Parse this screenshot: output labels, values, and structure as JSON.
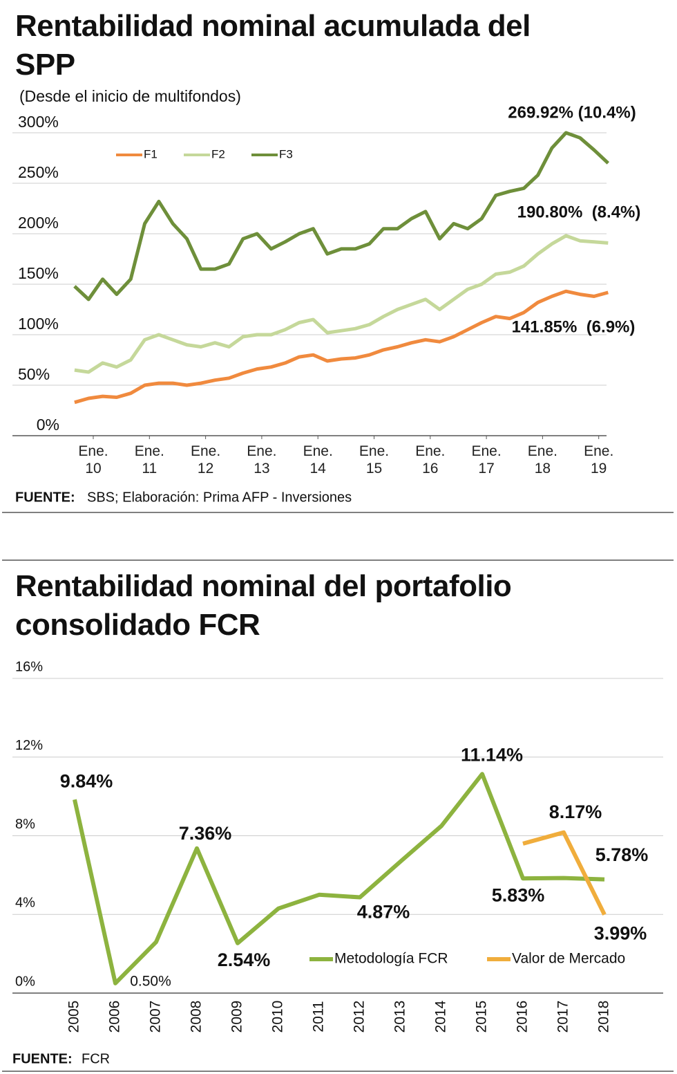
{
  "chart_data": [
    {
      "type": "line",
      "title": "Rentabilidad nominal acumulada del SPP",
      "subtitle": "(Desde el inicio de multifondos)",
      "x": [
        "2009-09",
        "2009-12",
        "2010-03",
        "2010-06",
        "2010-09",
        "2010-12",
        "2011-03",
        "2011-06",
        "2011-09",
        "2011-12",
        "2012-03",
        "2012-06",
        "2012-09",
        "2012-12",
        "2013-03",
        "2013-06",
        "2013-09",
        "2013-12",
        "2014-03",
        "2014-06",
        "2014-09",
        "2014-12",
        "2015-03",
        "2015-06",
        "2015-09",
        "2015-12",
        "2016-03",
        "2016-06",
        "2016-09",
        "2016-12",
        "2017-03",
        "2017-06",
        "2017-09",
        "2017-12",
        "2018-03",
        "2018-06",
        "2018-09",
        "2018-12",
        "2019-03"
      ],
      "series": [
        {
          "name": "F1",
          "color": "#f08a3e",
          "values": [
            33,
            37,
            39,
            38,
            42,
            50,
            52,
            52,
            50,
            52,
            55,
            57,
            62,
            66,
            68,
            72,
            78,
            80,
            74,
            76,
            77,
            80,
            85,
            88,
            92,
            95,
            93,
            98,
            105,
            112,
            118,
            116,
            122,
            132,
            138,
            143,
            140,
            138,
            141.85
          ]
        },
        {
          "name": "F2",
          "color": "#c5d89a",
          "values": [
            65,
            63,
            72,
            68,
            75,
            95,
            100,
            95,
            90,
            88,
            92,
            88,
            98,
            100,
            100,
            105,
            112,
            115,
            102,
            104,
            106,
            110,
            118,
            125,
            130,
            135,
            125,
            135,
            145,
            150,
            160,
            162,
            168,
            180,
            190,
            198,
            193,
            192,
            190.8
          ]
        },
        {
          "name": "F3",
          "color": "#6e8f3a",
          "values": [
            148,
            135,
            155,
            140,
            155,
            210,
            232,
            210,
            195,
            165,
            165,
            170,
            195,
            200,
            185,
            192,
            200,
            205,
            180,
            185,
            185,
            190,
            205,
            205,
            215,
            222,
            195,
            210,
            205,
            215,
            238,
            242,
            245,
            258,
            285,
            300,
            295,
            283,
            269.92
          ]
        }
      ],
      "annotations": [
        "269.92% (10.4%)",
        "190.80%  (8.4%)",
        "141.85%  (6.9%)"
      ],
      "xticks": [
        {
          "value": "2010-01",
          "label": "Ene.\n10"
        },
        {
          "value": "2011-01",
          "label": "Ene.\n11"
        },
        {
          "value": "2012-01",
          "label": "Ene.\n12"
        },
        {
          "value": "2013-01",
          "label": "Ene.\n13"
        },
        {
          "value": "2014-01",
          "label": "Ene.\n14"
        },
        {
          "value": "2015-01",
          "label": "Ene.\n15"
        },
        {
          "value": "2016-01",
          "label": "Ene.\n16"
        },
        {
          "value": "2017-01",
          "label": "Ene.\n17"
        },
        {
          "value": "2018-01",
          "label": "Ene.\n18"
        },
        {
          "value": "2019-01",
          "label": "Ene.\n19"
        }
      ],
      "ylim": [
        0,
        300
      ],
      "yticks": [
        {
          "value": 0,
          "label": "0%"
        },
        {
          "value": 50,
          "label": "50%"
        },
        {
          "value": 100,
          "label": "100%"
        },
        {
          "value": 150,
          "label": "150%"
        },
        {
          "value": 200,
          "label": "200%"
        },
        {
          "value": 250,
          "label": "250%"
        },
        {
          "value": 300,
          "label": "300%"
        }
      ],
      "grid": true,
      "legend": "top-left",
      "source": {
        "label": "FUENTE:",
        "text": "SBS; Elaboración: Prima AFP - Inversiones"
      }
    },
    {
      "type": "line",
      "title": "Rentabilidad nominal del portafolio consolidado FCR",
      "categories": [
        "2005",
        "2006",
        "2007",
        "2008",
        "2009",
        "2010",
        "2011",
        "2012",
        "2013",
        "2014",
        "2015",
        "2016",
        "2017",
        "2018"
      ],
      "series": [
        {
          "name": "Metodología FCR",
          "color": "#8db33f",
          "values": [
            9.84,
            0.5,
            2.6,
            7.36,
            2.54,
            4.3,
            5.0,
            4.87,
            6.7,
            8.5,
            11.14,
            5.83,
            5.85,
            5.78
          ],
          "value_labels": [
            "9.84%",
            "0.50%",
            null,
            "7.36%",
            "2.54%",
            null,
            null,
            "4.87%",
            null,
            null,
            "11.14%",
            "5.83%",
            null,
            "5.78%"
          ]
        },
        {
          "name": "Valor de Mercado",
          "color": "#f0ad3c",
          "values": [
            null,
            null,
            null,
            null,
            null,
            null,
            null,
            null,
            null,
            null,
            null,
            7.6,
            8.17,
            3.99
          ],
          "value_labels": [
            null,
            null,
            null,
            null,
            null,
            null,
            null,
            null,
            null,
            null,
            null,
            null,
            "8.17%",
            "3.99%"
          ]
        }
      ],
      "ylim": [
        0,
        16
      ],
      "yticks": [
        {
          "value": 0,
          "label": "0%"
        },
        {
          "value": 4,
          "label": "4%"
        },
        {
          "value": 8,
          "label": "8%"
        },
        {
          "value": 12,
          "label": "12%"
        },
        {
          "value": 16,
          "label": "16%"
        }
      ],
      "grid": true,
      "legend": "bottom-right",
      "source": {
        "label": "FUENTE:",
        "text": "FCR"
      }
    }
  ]
}
